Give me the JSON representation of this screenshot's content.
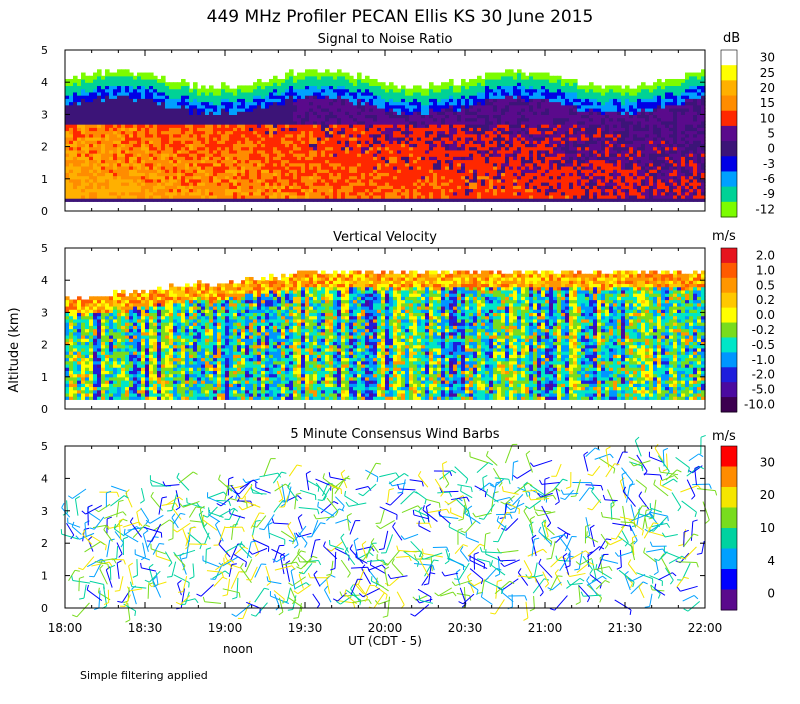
{
  "title": "449 MHz Profiler PECAN Ellis KS 30 June 2015",
  "ylabel": "Altitude (km)",
  "xlabel": "UT  (CDT - 5)",
  "noon_label": "noon",
  "footnote": "Simple filtering applied",
  "chart_data": [
    {
      "type": "heatmap",
      "title": "Signal to Noise Ratio",
      "x_range_hours": [
        18,
        22
      ],
      "y_range_km": [
        0,
        5
      ],
      "x_ticks": [
        "18:00",
        "18:30",
        "19:00",
        "19:30",
        "20:00",
        "20:30",
        "21:00",
        "21:30",
        "22:00"
      ],
      "y_ticks": [
        "0",
        "1",
        "2",
        "3",
        "4",
        "5"
      ],
      "colorbar": {
        "unit": "dB",
        "labels": [
          "30",
          "25",
          "20",
          "15",
          "10",
          "5",
          "0",
          "-3",
          "-6",
          "-9",
          "-12"
        ],
        "colors": [
          "#ffffff",
          "#ffff00",
          "#ffb000",
          "#ff8c00",
          "#ff2800",
          "#5a0a8c",
          "#3c1478",
          "#0000e6",
          "#00a0ff",
          "#00d296",
          "#7cfc00"
        ]
      }
    },
    {
      "type": "heatmap",
      "title": "Vertical Velocity",
      "x_range_hours": [
        18,
        22
      ],
      "y_range_km": [
        0,
        5
      ],
      "y_ticks": [
        "0",
        "1",
        "2",
        "3",
        "4",
        "5"
      ],
      "colorbar": {
        "unit": "m/s",
        "labels": [
          "2.0",
          "1.0",
          "0.5",
          "0.2",
          "0.0",
          "-0.2",
          "-0.5",
          "-1.0",
          "-2.0",
          "-5.0",
          "-10.0"
        ],
        "colors": [
          "#e6141e",
          "#ff5a00",
          "#ff9600",
          "#ffc800",
          "#ffff00",
          "#78dc1e",
          "#00e6c8",
          "#0096ff",
          "#1e1edc",
          "#4b0aa0",
          "#3c0050"
        ]
      }
    },
    {
      "type": "scatter",
      "title": "5 Minute Consensus Wind Barbs",
      "x_range_hours": [
        18,
        22
      ],
      "y_range_km": [
        0,
        5
      ],
      "y_ticks": [
        "0",
        "1",
        "2",
        "3",
        "4",
        "5"
      ],
      "colorbar": {
        "unit": "m/s",
        "labels": [
          "30",
          "20",
          "10",
          "4",
          "0"
        ],
        "colors": [
          "#ff0000",
          "#ff8c00",
          "#f5e600",
          "#78dc1e",
          "#00d2a0",
          "#00a0ff",
          "#0000ff",
          "#5a0a8c"
        ]
      }
    }
  ]
}
